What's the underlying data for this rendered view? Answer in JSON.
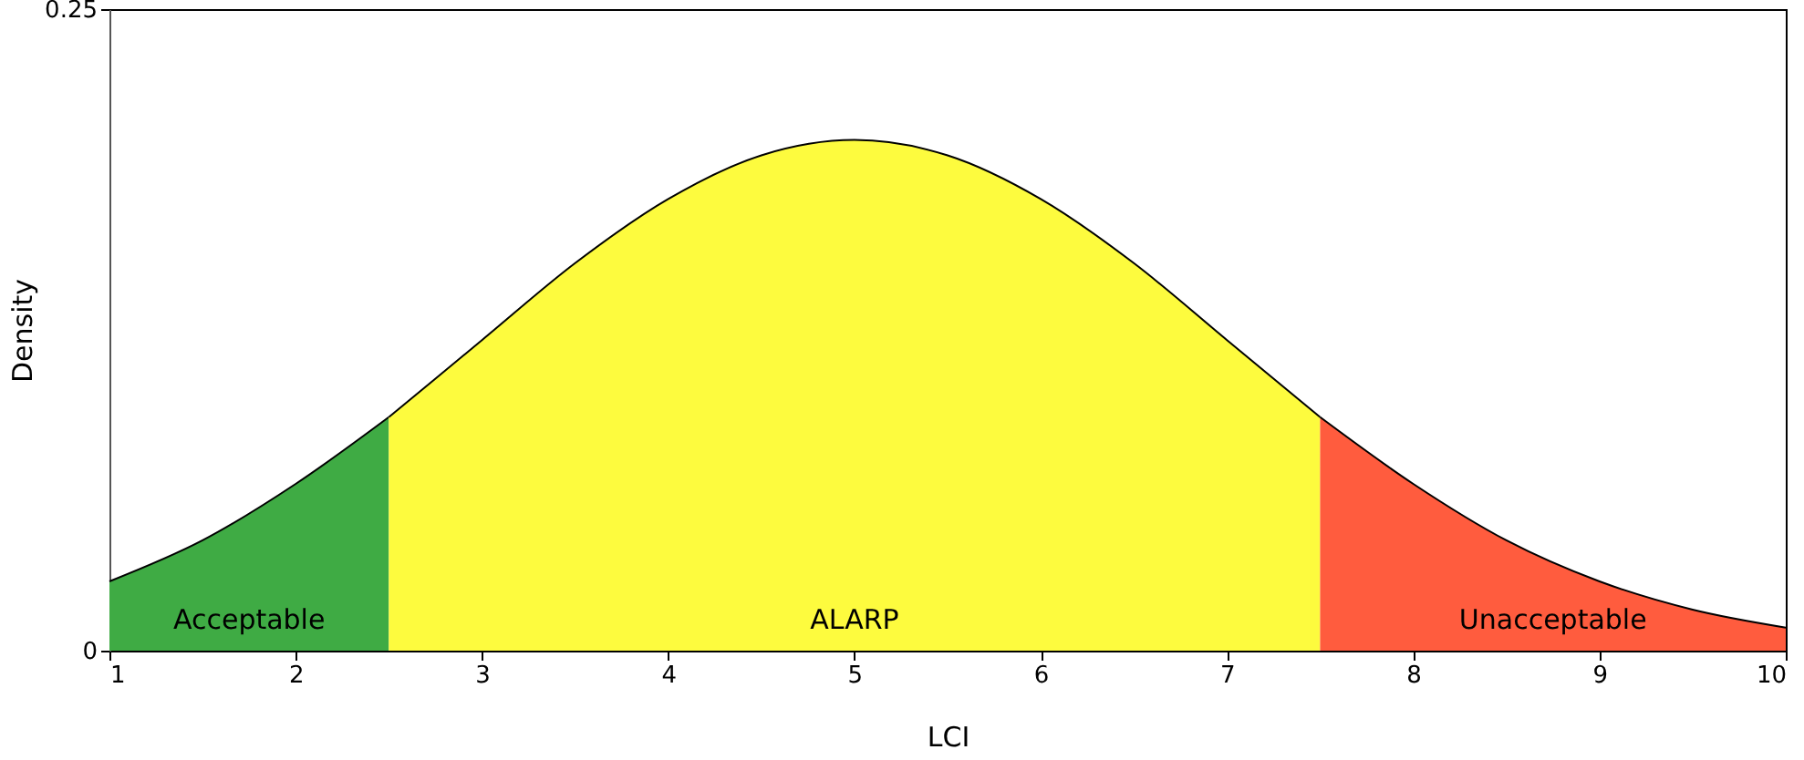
{
  "chart_data": {
    "type": "area",
    "xlabel": "LCI",
    "ylabel": "Density",
    "xlim": [
      1,
      10
    ],
    "xticks": [
      1,
      2,
      3,
      4,
      5,
      6,
      7,
      8,
      9,
      10
    ],
    "ylim": [
      0,
      0.25
    ],
    "yticks": [
      0,
      0.25
    ],
    "grid": false,
    "series": [
      {
        "color": "#3fab44",
        "x": [
          1,
          1.5,
          2,
          2.5
        ],
        "values": [
          0.027,
          0.043,
          0.065,
          0.091
        ]
      },
      {
        "color": "#fdfb3e",
        "x": [
          2.5,
          3,
          3.5,
          4,
          4.5,
          5,
          5.5,
          6,
          6.5,
          7,
          7.5
        ],
        "values": [
          0.091,
          0.121,
          0.151,
          0.176,
          0.193,
          0.199,
          0.193,
          0.176,
          0.151,
          0.121,
          0.091
        ]
      },
      {
        "color": "#ff5c3e",
        "x": [
          7.5,
          8,
          8.5,
          9,
          9.5,
          10
        ],
        "values": [
          0.091,
          0.065,
          0.043,
          0.027,
          0.016,
          0.009
        ]
      }
    ],
    "annotations": [
      "Acceptable",
      "ALARP",
      "Unacceptable"
    ]
  }
}
